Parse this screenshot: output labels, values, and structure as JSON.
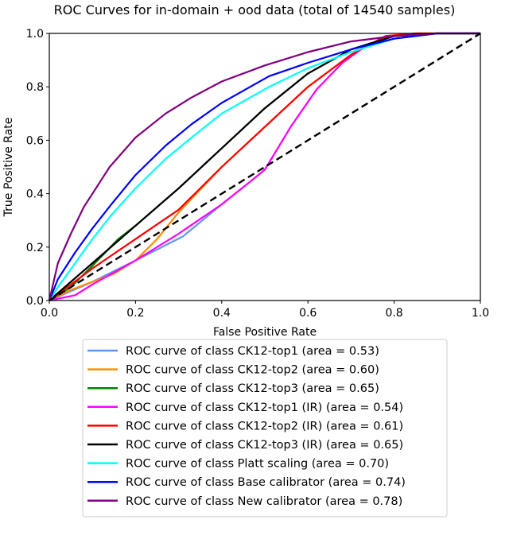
{
  "chart_data": {
    "type": "line",
    "title": "ROC Curves for in-domain + ood data (total of 14540 samples)",
    "xlabel": "False Positive Rate",
    "ylabel": "True Positive Rate",
    "xlim": [
      0,
      1
    ],
    "ylim": [
      0,
      1
    ],
    "xticks": [
      "0.0",
      "0.2",
      "0.4",
      "0.6",
      "0.8",
      "1.0"
    ],
    "yticks": [
      "0.0",
      "0.2",
      "0.4",
      "0.6",
      "0.8",
      "1.0"
    ],
    "grid": false,
    "legend_position": "below",
    "diagonal": {
      "style": "dashed",
      "color": "#000000",
      "points": [
        [
          0,
          0
        ],
        [
          1,
          1
        ]
      ]
    },
    "series": [
      {
        "name": "ROC curve of class CK12-top1 (area = 0.53)",
        "color": "#6495ED",
        "points": [
          [
            0,
            0
          ],
          [
            0.1,
            0.07
          ],
          [
            0.2,
            0.15
          ],
          [
            0.31,
            0.24
          ],
          [
            0.4,
            0.36
          ],
          [
            0.47,
            0.45
          ],
          [
            0.5,
            0.49
          ],
          [
            0.56,
            0.65
          ],
          [
            0.62,
            0.79
          ],
          [
            0.68,
            0.89
          ],
          [
            0.74,
            0.96
          ],
          [
            0.8,
            0.99
          ],
          [
            0.9,
            1
          ],
          [
            1,
            1
          ]
        ]
      },
      {
        "name": "ROC curve of class CK12-top2 (area = 0.60)",
        "color": "#FF8C00",
        "points": [
          [
            0,
            0
          ],
          [
            0.05,
            0.04
          ],
          [
            0.15,
            0.1
          ],
          [
            0.2,
            0.15
          ],
          [
            0.25,
            0.23
          ],
          [
            0.3,
            0.33
          ],
          [
            0.4,
            0.5
          ],
          [
            0.5,
            0.65
          ],
          [
            0.6,
            0.8
          ],
          [
            0.7,
            0.92
          ],
          [
            0.78,
            0.99
          ],
          [
            0.85,
            1
          ],
          [
            1,
            1
          ]
        ]
      },
      {
        "name": "ROC curve of class CK12-top3 (area = 0.65)",
        "color": "#008000",
        "points": [
          [
            0,
            0
          ],
          [
            0.05,
            0.05
          ],
          [
            0.1,
            0.13
          ],
          [
            0.16,
            0.23
          ],
          [
            0.2,
            0.28
          ],
          [
            0.3,
            0.42
          ],
          [
            0.4,
            0.57
          ],
          [
            0.5,
            0.72
          ],
          [
            0.6,
            0.85
          ],
          [
            0.7,
            0.94
          ],
          [
            0.8,
            0.99
          ],
          [
            0.9,
            1
          ],
          [
            1,
            1
          ]
        ]
      },
      {
        "name": "ROC curve of class CK12-top1 (IR) (area = 0.54)",
        "color": "#FF00FF",
        "points": [
          [
            0,
            0
          ],
          [
            0.06,
            0.02
          ],
          [
            0.1,
            0.06
          ],
          [
            0.2,
            0.15
          ],
          [
            0.3,
            0.25
          ],
          [
            0.4,
            0.36
          ],
          [
            0.47,
            0.45
          ],
          [
            0.5,
            0.49
          ],
          [
            0.56,
            0.65
          ],
          [
            0.62,
            0.79
          ],
          [
            0.68,
            0.89
          ],
          [
            0.74,
            0.96
          ],
          [
            0.8,
            0.99
          ],
          [
            0.9,
            1
          ],
          [
            1,
            1
          ]
        ]
      },
      {
        "name": "ROC curve of class CK12-top2 (IR) (area = 0.61)",
        "color": "#FF0000",
        "points": [
          [
            0,
            0
          ],
          [
            0.1,
            0.12
          ],
          [
            0.2,
            0.23
          ],
          [
            0.3,
            0.34
          ],
          [
            0.4,
            0.5
          ],
          [
            0.5,
            0.65
          ],
          [
            0.6,
            0.8
          ],
          [
            0.7,
            0.92
          ],
          [
            0.78,
            0.99
          ],
          [
            0.85,
            1
          ],
          [
            1,
            1
          ]
        ]
      },
      {
        "name": "ROC curve of class CK12-top3 (IR) (area = 0.65)",
        "color": "#000000",
        "points": [
          [
            0,
            0
          ],
          [
            0.1,
            0.14
          ],
          [
            0.2,
            0.28
          ],
          [
            0.3,
            0.42
          ],
          [
            0.4,
            0.57
          ],
          [
            0.5,
            0.72
          ],
          [
            0.6,
            0.85
          ],
          [
            0.7,
            0.94
          ],
          [
            0.8,
            0.99
          ],
          [
            0.9,
            1
          ],
          [
            1,
            1
          ]
        ]
      },
      {
        "name": "ROC curve of class Platt scaling (area = 0.70)",
        "color": "#00FFFF",
        "points": [
          [
            0,
            0
          ],
          [
            0.02,
            0.05
          ],
          [
            0.06,
            0.14
          ],
          [
            0.1,
            0.23
          ],
          [
            0.144,
            0.32
          ],
          [
            0.2,
            0.42
          ],
          [
            0.27,
            0.53
          ],
          [
            0.33,
            0.61
          ],
          [
            0.4,
            0.7
          ],
          [
            0.51,
            0.8
          ],
          [
            0.6,
            0.87
          ],
          [
            0.7,
            0.93
          ],
          [
            0.8,
            0.98
          ],
          [
            0.9,
            1
          ],
          [
            1,
            1
          ]
        ]
      },
      {
        "name": "ROC curve of class Base calibrator (area = 0.74)",
        "color": "#0000FF",
        "points": [
          [
            0,
            0
          ],
          [
            0.02,
            0.08
          ],
          [
            0.06,
            0.18
          ],
          [
            0.1,
            0.27
          ],
          [
            0.144,
            0.36
          ],
          [
            0.2,
            0.47
          ],
          [
            0.27,
            0.58
          ],
          [
            0.33,
            0.66
          ],
          [
            0.4,
            0.74
          ],
          [
            0.51,
            0.84
          ],
          [
            0.6,
            0.89
          ],
          [
            0.7,
            0.94
          ],
          [
            0.8,
            0.98
          ],
          [
            0.9,
            1
          ],
          [
            1,
            1
          ]
        ]
      },
      {
        "name": "ROC curve of class New calibrator (area = 0.78)",
        "color": "#800080",
        "points": [
          [
            0,
            0
          ],
          [
            0.01,
            0.07
          ],
          [
            0.02,
            0.14
          ],
          [
            0.05,
            0.25
          ],
          [
            0.08,
            0.35
          ],
          [
            0.14,
            0.5
          ],
          [
            0.2,
            0.61
          ],
          [
            0.27,
            0.7
          ],
          [
            0.33,
            0.76
          ],
          [
            0.4,
            0.82
          ],
          [
            0.5,
            0.88
          ],
          [
            0.6,
            0.93
          ],
          [
            0.7,
            0.97
          ],
          [
            0.8,
            0.99
          ],
          [
            0.9,
            1
          ],
          [
            1,
            1
          ]
        ]
      }
    ]
  }
}
